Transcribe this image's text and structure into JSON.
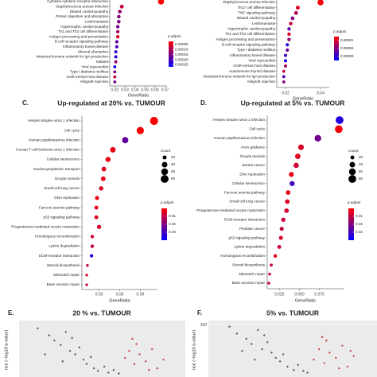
{
  "chart_data": [
    {
      "type": "dotplot",
      "categories": [
        "Cytokine-cytokine receptor interaction",
        "Staphylococcus aureus infection",
        "Dilated cardiomyopathy",
        "Protein digestion and absorption",
        "Leishmaniasis",
        "Hypertrophic cardiomyopathy",
        "Th1 and Th2 cell differentiation",
        "Antigen processing and presentation",
        "B cell receptor signaling pathway",
        "Inflammatory bowel disease",
        "Mineral absorption",
        "Intestinal immune network for IgA production",
        "Malaria",
        "Viral myocarditis",
        "Type I diabetes mellitus",
        "Graft-versus-host disease",
        "Allograft rejection"
      ],
      "values": [
        0.066,
        0.027,
        0.025,
        0.024,
        0.024,
        0.023,
        0.023,
        0.023,
        0.022,
        0.022,
        0.021,
        0.021,
        0.021,
        0.02,
        0.02,
        0.02,
        0.02
      ],
      "counts": [
        40,
        17,
        15,
        14,
        14,
        13,
        13,
        13,
        12,
        12,
        11,
        11,
        11,
        10,
        10,
        10,
        10
      ],
      "padj": [
        2e-05,
        8e-05,
        0.00012,
        0.00014,
        0.00015,
        0.00016,
        0.0001,
        6e-05,
        0.00018,
        0.0002,
        0.00022,
        0.00024,
        0.00012,
        0.00025,
        0.00014,
        8e-05,
        0.00016
      ],
      "xlabel": "GeneRatio",
      "xlim": [
        0.015,
        0.072
      ],
      "xticks": [
        0.02,
        0.03,
        0.04,
        0.05,
        0.06,
        0.07
      ],
      "color_legend_title": "p.adjust",
      "clim": [
        2e-05,
        0.00027
      ],
      "cticks": [
        5e-05,
        {
          "value": 0.0001,
          "label": "0.00010"
        },
        0.00015,
        {
          "value": 0.0002,
          "label": "0.00020"
        },
        0.00025
      ],
      "low_color": "#ff0000",
      "high_color": "#0000ff"
    },
    {
      "type": "dotplot",
      "categories": [
        "Staphylococcus aureus infection",
        "Th17 cell differentiation",
        "TNF signaling pathway",
        "Dilated cardiomyopathy",
        "Leishmaniasis",
        "Hypertrophic cardiomyopathy",
        "Th1 and Th2 cell differentiation",
        "Antigen processing and presentation",
        "B cell receptor signaling pathway",
        "Type I diabetes mellitus",
        "Inflammatory bowel disease",
        "Viral myocarditis",
        "Graft-versus-host disease",
        "Autoimmune thyroid disease",
        "Intestinal immune network for IgA production",
        "Allograft rejection"
      ],
      "values": [
        0.04,
        0.027,
        0.026,
        0.024,
        0.023,
        0.022,
        0.022,
        0.022,
        0.021,
        0.021,
        0.02,
        0.02,
        0.02,
        0.019,
        0.019,
        0.019
      ],
      "counts": [
        40,
        17,
        16,
        15,
        14,
        13,
        13,
        13,
        12,
        12,
        11,
        11,
        11,
        10,
        10,
        10
      ],
      "padj": [
        6e-06,
        1e-05,
        1.5e-05,
        2e-05,
        1.2e-05,
        2.5e-05,
        8e-06,
        1.8e-05,
        3e-05,
        2.2e-05,
        2.8e-05,
        3.3e-05,
        1.6e-05,
        1.2e-05,
        2.6e-05,
        2e-05
      ],
      "xlabel": "GeneRatio",
      "xlim": [
        0.015,
        0.045
      ],
      "xticks": [
        0.02,
        0.04
      ],
      "color_legend_title": "p.adjust",
      "clim": [
        5e-06,
        3.5e-05
      ],
      "cticks": [
        1e-05,
        2e-05,
        3e-05
      ],
      "low_color": "#ff0000",
      "high_color": "#0000ff"
    },
    {
      "type": "dotplot",
      "panel_label": "C.",
      "title": "Up-regulated at 20% vs. TUMOUR",
      "categories": [
        "Herpes simplex virus 1 infection",
        "Cell cycle",
        "Human papillomavirus infection",
        "Human T-cell leukemia virus 1 infection",
        "Cellular senescence",
        "Nucleocytoplasmic transport",
        "Oocyte meiosis",
        "Small cell lung cancer",
        "DNA replication",
        "Fanconi anemia pathway",
        "p53 signaling pathway",
        "Progesterone-mediated oocyte maturation",
        "Homologous recombination",
        "Lysine degradation",
        "ECM-receptor interaction",
        "Steroid biosynthesis",
        "Mismatch repair",
        "Base excision repair"
      ],
      "values": [
        0.11,
        0.09,
        0.068,
        0.05,
        0.043,
        0.037,
        0.036,
        0.033,
        0.027,
        0.026,
        0.026,
        0.03,
        0.02,
        0.02,
        0.019,
        0.013,
        0.012,
        0.012
      ],
      "counts": [
        85,
        70,
        52,
        40,
        34,
        28,
        28,
        25,
        21,
        20,
        20,
        23,
        16,
        16,
        15,
        10,
        9,
        9
      ],
      "padj": [
        0.001,
        0.001,
        0.025,
        0.004,
        0.003,
        0.005,
        0.004,
        0.006,
        0.003,
        0.004,
        0.006,
        0.007,
        0.008,
        0.009,
        0.036,
        0.01,
        0.006,
        0.008
      ],
      "xlabel": "GeneRatio",
      "xlim": [
        0.005,
        0.115
      ],
      "xticks": [
        0.03,
        0.06,
        0.09
      ],
      "size_legend_title": "Count",
      "size_ticks": [
        20,
        40,
        60,
        80
      ],
      "color_legend_title": "p.adjust",
      "clim": [
        0,
        0.04
      ],
      "cticks": [
        0.01,
        0.02,
        0.03
      ],
      "low_color": "#ff0000",
      "high_color": "#0000ff"
    },
    {
      "type": "dotplot",
      "panel_label": "D.",
      "title": "Up-regulated at 5% vs. TUMOUR",
      "categories": [
        "Herpes simplex virus 1 infection",
        "Cell cycle",
        "Human papillomavirus infection",
        "Axon guidance",
        "Oocyte meiosis",
        "Breast cancer",
        "DNA replication",
        "Cellular senescence",
        "Fanconi anemia pathway",
        "Small cell lung cancer",
        "Progesterone-mediated oocyte maturation",
        "ECM-receptor interaction",
        "Prostate cancer",
        "p53 signaling pathway",
        "Lysine degradation",
        "Homologous recombination",
        "Steroid biosynthesis",
        "Mismatch repair",
        "Base excision repair"
      ],
      "values": [
        0.1,
        0.099,
        0.073,
        0.052,
        0.048,
        0.046,
        0.04,
        0.041,
        0.036,
        0.035,
        0.034,
        0.03,
        0.028,
        0.027,
        0.025,
        0.02,
        0.015,
        0.013,
        0.012
      ],
      "counts": [
        80,
        78,
        58,
        42,
        38,
        36,
        32,
        33,
        28,
        28,
        27,
        24,
        22,
        21,
        20,
        16,
        12,
        10,
        10
      ],
      "padj": [
        0.035,
        0.002,
        0.022,
        0.006,
        0.004,
        0.008,
        0.003,
        0.03,
        0.004,
        0.006,
        0.007,
        0.009,
        0.01,
        0.006,
        0.008,
        0.005,
        0.009,
        0.007,
        0.008
      ],
      "xlabel": "GeneRatio",
      "xlim": [
        0.01,
        0.105
      ],
      "xticks": [
        0.025,
        {
          "value": 0.05,
          "label": "0.050"
        },
        0.075
      ],
      "size_legend_title": "Count",
      "size_ticks": [
        20,
        40,
        60,
        80
      ],
      "color_legend_title": "p.adjust",
      "clim": [
        0,
        0.04
      ],
      "cticks": [
        0.01,
        0.02,
        0.03
      ],
      "low_color": "#ff0000",
      "high_color": "#0000ff"
    },
    {
      "type": "scatter",
      "panel_label": "E.",
      "title": "20 % vs. TUMOUR",
      "ylabel": "nce (−log10 q-value)",
      "xlim": [
        -8,
        8
      ],
      "ylim": [
        40,
        105
      ],
      "series": [
        {
          "color": "#2f4f3a",
          "x": [
            -6.2,
            -5.1,
            -4.6,
            -4.0,
            -3.5,
            -3.1,
            -2.6,
            -2.2,
            -1.8,
            -1.5,
            -1.1,
            -0.8,
            -0.4,
            0.2,
            0.6,
            -3.8,
            -2.9,
            -5.5,
            1.1,
            1.6
          ],
          "values": [
            96,
            88,
            82,
            77,
            92,
            70,
            66,
            74,
            60,
            55,
            63,
            50,
            47,
            52,
            45,
            58,
            85,
            66,
            48,
            44
          ]
        },
        {
          "color": "#c62828",
          "x": [
            2.2,
            2.6,
            3.1,
            3.6,
            4.2,
            4.8,
            5.3,
            5.9,
            3.3,
            4.5,
            2.9
          ],
          "values": [
            62,
            70,
            55,
            66,
            58,
            72,
            50,
            60,
            78,
            48,
            84
          ]
        }
      ]
    },
    {
      "type": "scatter",
      "panel_label": "F.",
      "title": "5% vs. TUMOUR",
      "ylabel": "nce (−log10 q-value)",
      "xlim": [
        -8,
        8
      ],
      "ylim": [
        40,
        105
      ],
      "yticks": [
        100
      ],
      "series": [
        {
          "color": "#2f4f3a",
          "x": [
            -6.0,
            -5.3,
            -4.4,
            -3.9,
            -3.3,
            -2.9,
            -2.4,
            -2.0,
            -1.6,
            -1.2,
            -0.9,
            -0.5,
            0.1,
            0.5,
            -4.8,
            -3.6,
            -2.7,
            1.0,
            1.4
          ],
          "values": [
            98,
            90,
            84,
            78,
            94,
            72,
            80,
            68,
            62,
            58,
            66,
            52,
            48,
            54,
            70,
            60,
            88,
            47,
            45
          ]
        },
        {
          "color": "#c62828",
          "x": [
            2.0,
            2.5,
            3.0,
            3.5,
            4.1,
            4.7,
            5.2,
            5.8,
            3.2,
            4.4,
            2.8,
            5.5
          ],
          "values": [
            60,
            72,
            56,
            68,
            62,
            76,
            52,
            64,
            82,
            50,
            86,
            70
          ]
        }
      ]
    }
  ]
}
